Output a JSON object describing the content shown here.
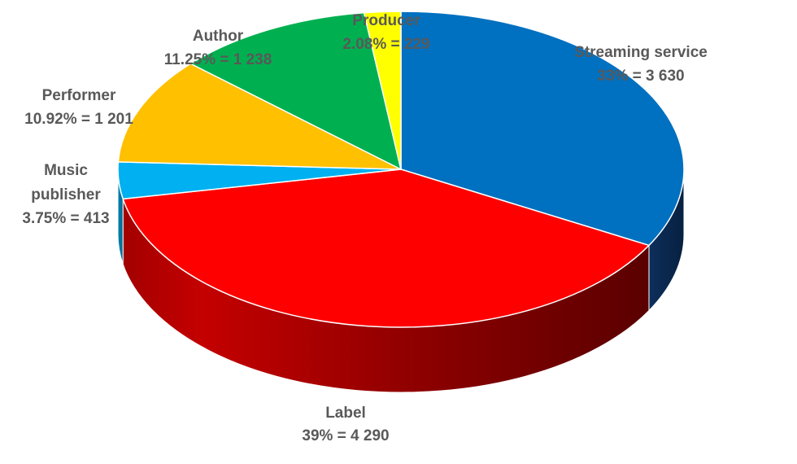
{
  "chart_data": {
    "type": "pie",
    "style": "3d",
    "title": "",
    "slices": [
      {
        "category": "Streaming service",
        "percent_label": "33%",
        "value_label": "3 630",
        "value": 3630,
        "color": "#0070C0"
      },
      {
        "category": "Label",
        "percent_label": "39%",
        "value_label": "4 290",
        "value": 4290,
        "color": "#FF0000"
      },
      {
        "category": "Music publisher",
        "percent_label": "3.75%",
        "value_label": "413",
        "value": 413,
        "color": "#00B0F0"
      },
      {
        "category": "Performer",
        "percent_label": "10.92%",
        "value_label": "1 201",
        "value": 1201,
        "color": "#FFC000"
      },
      {
        "category": "Author",
        "percent_label": "11.25%",
        "value_label": "1 238",
        "value": 1238,
        "color": "#00B050"
      },
      {
        "category": "Producer",
        "percent_label": "2.08%",
        "value_label": "229",
        "value": 229,
        "color": "#FFFF00"
      }
    ],
    "labels": [
      {
        "line1": "Streaming service",
        "line2": "33% = 3 630"
      },
      {
        "line1": "Label",
        "line2": "39% = 4 290"
      },
      {
        "line1": "Music",
        "line2": "publisher",
        "line3": "3.75% = 413"
      },
      {
        "line1": "Performer",
        "line2": "10.92% = 1 201"
      },
      {
        "line1": "Author",
        "line2": "11.25% = 1 238"
      },
      {
        "line1": "Producer",
        "line2": "2.08% = 229"
      }
    ]
  }
}
